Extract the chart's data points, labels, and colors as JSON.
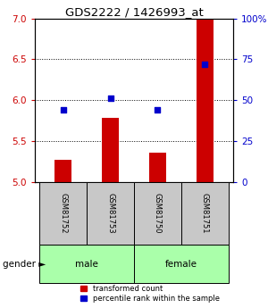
{
  "title": "GDS2222 / 1426993_at",
  "samples": [
    "GSM81752",
    "GSM81753",
    "GSM81750",
    "GSM81751"
  ],
  "gender_labels": [
    "male",
    "female"
  ],
  "transformed_counts": [
    5.27,
    5.78,
    5.36,
    7.0
  ],
  "percentile_ranks": [
    44,
    51,
    44,
    72
  ],
  "ylim_left": [
    5.0,
    7.0
  ],
  "yticks_left": [
    5.0,
    5.5,
    6.0,
    6.5,
    7.0
  ],
  "ylim_right": [
    0,
    100
  ],
  "yticks_right": [
    0,
    25,
    50,
    75,
    100
  ],
  "bar_color": "#cc0000",
  "dot_color": "#0000cc",
  "bar_width": 0.35,
  "left_tick_color": "#cc0000",
  "right_tick_color": "#0000cc",
  "sample_box_color": "#c8c8c8",
  "gender_box_color": "#aaffaa",
  "legend_bar_label": "transformed count",
  "legend_dot_label": "percentile rank within the sample",
  "gender_label": "gender ►"
}
